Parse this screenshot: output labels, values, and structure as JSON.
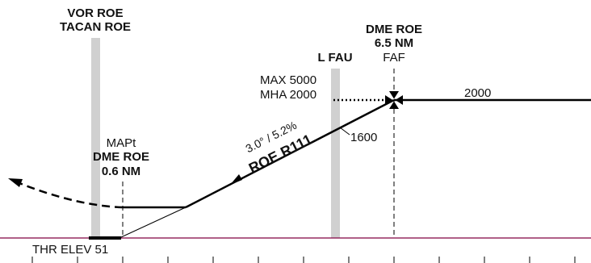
{
  "facilities": {
    "vor_line1": "VOR ROE",
    "vor_line2": "TACAN ROE"
  },
  "fix_faf": {
    "dme_line1": "DME ROE",
    "dme_line2": "6.5 NM",
    "role": "FAF"
  },
  "fix_lfau": {
    "label": "L FAU"
  },
  "altitudes": {
    "max": "MAX 5000",
    "mha": "MHA 2000",
    "level_segment": "2000",
    "step_down": "1600"
  },
  "map_fix": {
    "label": "MAPt",
    "dme_line1": "DME ROE",
    "dme_line2": "0.6 NM"
  },
  "final_approach": {
    "glide": "3.0° / 5.2%",
    "radial": "ROE R111"
  },
  "threshold": {
    "elevation": "THR ELEV 51"
  },
  "colors": {
    "ground_line": "#800040",
    "facility_bar": "#d0d0d0",
    "ink": "#000000"
  }
}
